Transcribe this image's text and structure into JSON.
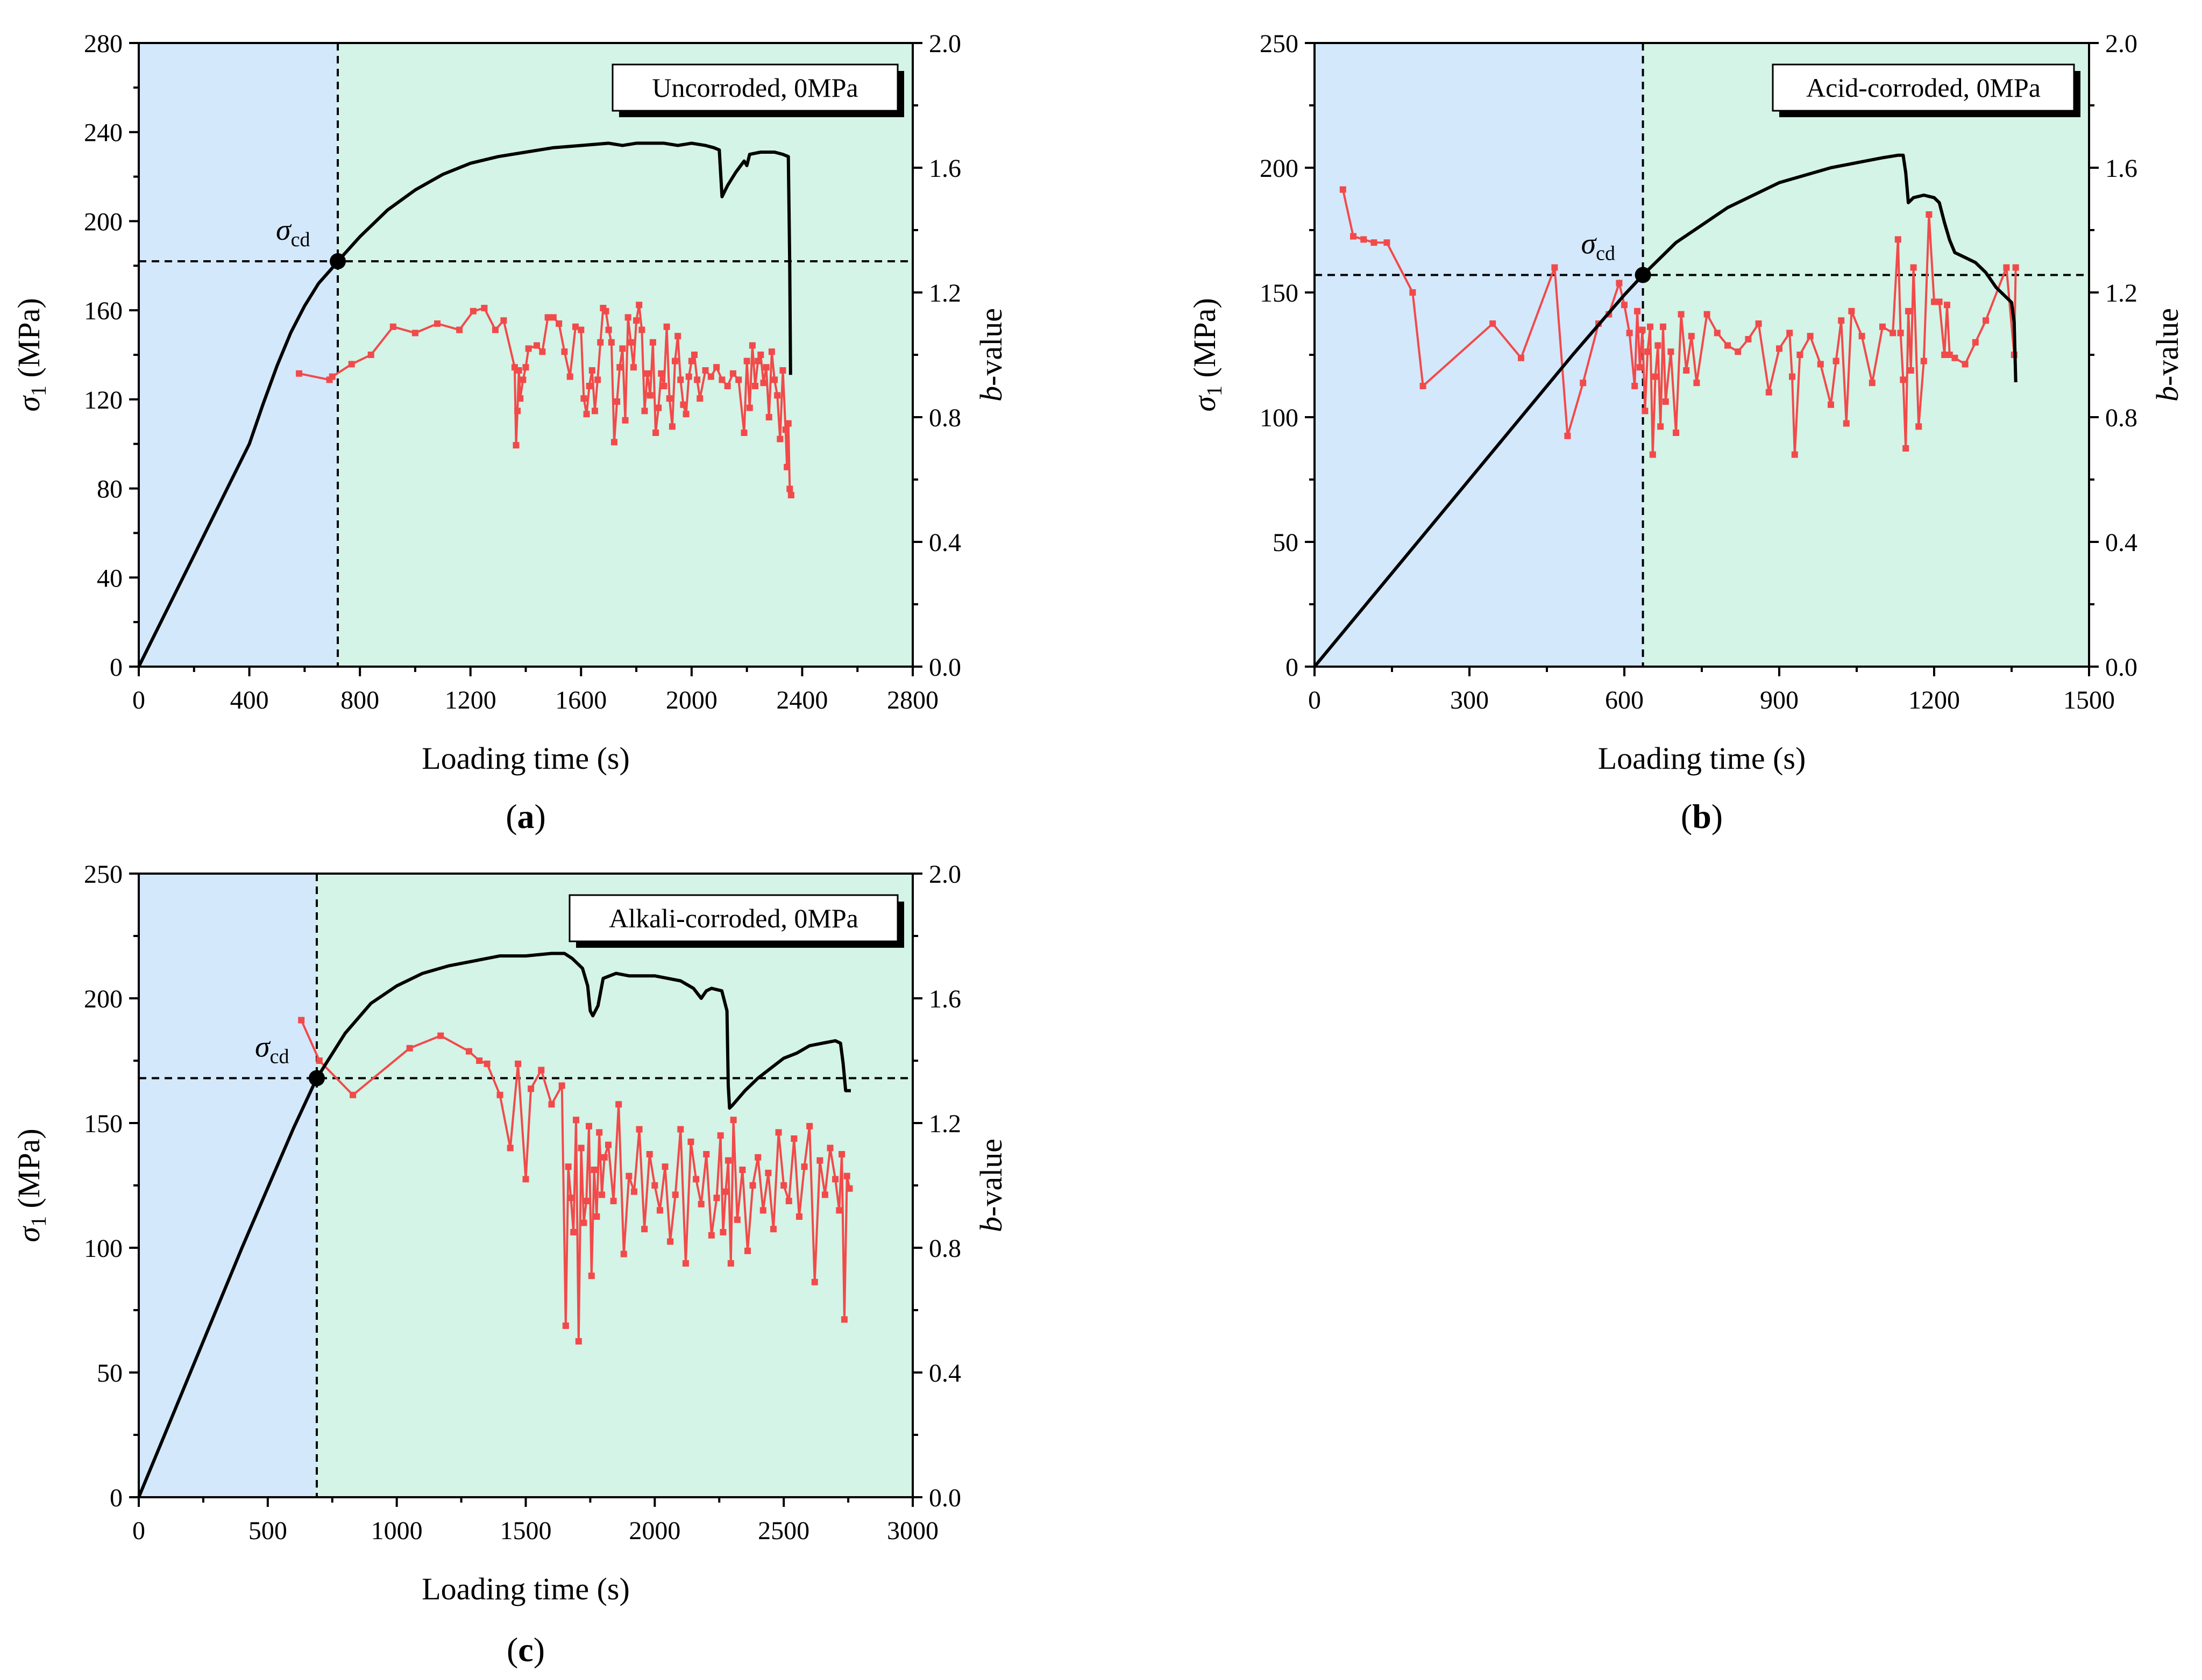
{
  "colors": {
    "pre_region": "#d3e8fb",
    "post_region": "#d3f4e7",
    "stress_line": "#000000",
    "b_value": "#f24a4a",
    "marker": "#000000"
  },
  "chart_data": [
    {
      "id": "a",
      "type": "line",
      "panel_label": "a",
      "legend": "Uncorroded, 0MPa",
      "xlabel": "Loading time (s)",
      "ylabel_main": "σ",
      "ylabel_sub": "1",
      "ylabel_unit": " (MPa)",
      "y2label_italic": "b",
      "y2label_rest": "-value",
      "xlim": [
        0,
        2800
      ],
      "ylim": [
        0,
        280
      ],
      "y2lim": [
        0,
        2.0
      ],
      "xticks": [
        "0",
        "400",
        "800",
        "1200",
        "1600",
        "2000",
        "2400",
        "2800"
      ],
      "yticks": [
        "0",
        "40",
        "80",
        "120",
        "160",
        "200",
        "240",
        "280"
      ],
      "y2ticks": [
        "0.0",
        "0.4",
        "0.8",
        "1.2",
        "1.6",
        "2.0"
      ],
      "cd_point": {
        "x": 720,
        "y": 182,
        "label": "σ",
        "sub": "cd"
      },
      "stress": {
        "x": [
          0,
          100,
          200,
          300,
          400,
          450,
          500,
          550,
          600,
          650,
          700,
          720,
          800,
          900,
          1000,
          1100,
          1200,
          1300,
          1400,
          1500,
          1600,
          1700,
          1750,
          1800,
          1850,
          1900,
          1950,
          2000,
          2050,
          2080,
          2100,
          2110,
          2130,
          2160,
          2190,
          2200,
          2210,
          2250,
          2300,
          2330,
          2350,
          2355,
          2358
        ],
        "y": [
          0,
          25,
          50,
          75,
          100,
          118,
          135,
          150,
          162,
          172,
          179,
          182,
          193,
          205,
          214,
          221,
          226,
          229,
          231,
          233,
          234,
          235,
          234,
          235,
          235,
          235,
          234,
          235,
          234,
          233,
          232,
          211,
          216,
          222,
          227,
          225,
          230,
          231,
          231,
          230,
          229,
          180,
          131
        ]
      },
      "b_values": {
        "x": [
          580,
          690,
          700,
          770,
          840,
          920,
          1000,
          1080,
          1160,
          1210,
          1250,
          1290,
          1320,
          1360,
          1365,
          1370,
          1375,
          1380,
          1390,
          1400,
          1410,
          1440,
          1460,
          1480,
          1500,
          1520,
          1540,
          1560,
          1580,
          1600,
          1610,
          1620,
          1630,
          1640,
          1650,
          1660,
          1670,
          1680,
          1690,
          1700,
          1710,
          1720,
          1730,
          1740,
          1750,
          1760,
          1770,
          1780,
          1790,
          1800,
          1810,
          1820,
          1830,
          1840,
          1850,
          1860,
          1870,
          1880,
          1890,
          1900,
          1910,
          1920,
          1930,
          1940,
          1950,
          1960,
          1970,
          1980,
          1990,
          2000,
          2010,
          2020,
          2030,
          2050,
          2070,
          2090,
          2110,
          2130,
          2150,
          2170,
          2190,
          2200,
          2210,
          2220,
          2230,
          2240,
          2250,
          2260,
          2270,
          2280,
          2290,
          2300,
          2310,
          2320,
          2330,
          2340,
          2345,
          2350,
          2355,
          2360
        ],
        "y": [
          0.94,
          0.92,
          0.93,
          0.97,
          1.0,
          1.09,
          1.07,
          1.1,
          1.08,
          1.14,
          1.15,
          1.08,
          1.11,
          0.96,
          0.71,
          0.82,
          0.95,
          0.86,
          0.92,
          0.96,
          1.02,
          1.03,
          1.01,
          1.12,
          1.12,
          1.1,
          1.01,
          0.93,
          1.09,
          1.08,
          0.86,
          0.81,
          0.9,
          0.95,
          0.82,
          0.92,
          1.04,
          1.15,
          1.14,
          1.08,
          1.04,
          0.72,
          0.85,
          0.96,
          1.02,
          0.79,
          1.12,
          1.04,
          0.96,
          1.11,
          1.16,
          1.08,
          0.82,
          0.94,
          0.87,
          1.04,
          0.75,
          0.83,
          0.94,
          0.9,
          1.09,
          0.86,
          0.77,
          0.98,
          1.06,
          0.92,
          0.84,
          0.81,
          0.93,
          0.98,
          1.0,
          0.92,
          0.86,
          0.95,
          0.93,
          0.96,
          0.92,
          0.9,
          0.94,
          0.92,
          0.75,
          0.98,
          0.83,
          1.03,
          0.9,
          0.98,
          1.0,
          0.91,
          0.96,
          0.8,
          1.01,
          0.92,
          0.87,
          0.73,
          0.95,
          0.76,
          0.64,
          0.78,
          0.57,
          0.55
        ]
      }
    },
    {
      "id": "b",
      "type": "line",
      "panel_label": "b",
      "legend": "Acid-corroded, 0MPa",
      "xlabel": "Loading time (s)",
      "ylabel_main": "σ",
      "ylabel_sub": "1",
      "ylabel_unit": " (MPa)",
      "y2label_italic": "b",
      "y2label_rest": "-value",
      "xlim": [
        0,
        1500
      ],
      "ylim": [
        0,
        250
      ],
      "y2lim": [
        0,
        2.0
      ],
      "xticks": [
        "0",
        "300",
        "600",
        "900",
        "1200",
        "1500"
      ],
      "yticks": [
        "0",
        "50",
        "100",
        "150",
        "200",
        "250"
      ],
      "y2ticks": [
        "0.0",
        "0.4",
        "0.8",
        "1.2",
        "1.6",
        "2.0"
      ],
      "cd_point": {
        "x": 636,
        "y": 157,
        "label": "σ",
        "sub": "cd"
      },
      "stress": {
        "x": [
          0,
          100,
          200,
          300,
          400,
          500,
          600,
          636,
          700,
          800,
          900,
          1000,
          1050,
          1100,
          1130,
          1140,
          1145,
          1150,
          1160,
          1180,
          1200,
          1210,
          1220,
          1230,
          1240,
          1260,
          1280,
          1300,
          1320,
          1340,
          1350,
          1355,
          1358
        ],
        "y": [
          0,
          25,
          50,
          75,
          100,
          125,
          149,
          157,
          170,
          184,
          194,
          200,
          202,
          204,
          205,
          205,
          198,
          186,
          188,
          189,
          188,
          186,
          178,
          171,
          166,
          164,
          162,
          158,
          152,
          148,
          146,
          138,
          114
        ]
      },
      "b_values": {
        "x": [
          55,
          75,
          95,
          115,
          140,
          190,
          210,
          345,
          400,
          465,
          490,
          520,
          550,
          570,
          590,
          600,
          610,
          620,
          625,
          630,
          635,
          640,
          645,
          650,
          655,
          660,
          665,
          670,
          675,
          680,
          690,
          700,
          710,
          720,
          730,
          740,
          760,
          780,
          800,
          820,
          840,
          860,
          880,
          900,
          920,
          925,
          930,
          940,
          960,
          980,
          1000,
          1010,
          1020,
          1030,
          1040,
          1060,
          1080,
          1100,
          1120,
          1130,
          1135,
          1140,
          1145,
          1150,
          1155,
          1160,
          1170,
          1180,
          1190,
          1200,
          1210,
          1220,
          1225,
          1230,
          1240,
          1260,
          1280,
          1300,
          1340,
          1355,
          1358
        ],
        "y": [
          1.53,
          1.38,
          1.37,
          1.36,
          1.36,
          1.2,
          0.9,
          1.1,
          0.99,
          1.28,
          0.74,
          0.91,
          1.1,
          1.13,
          1.23,
          1.16,
          1.07,
          0.9,
          1.14,
          0.96,
          1.08,
          0.82,
          1.01,
          1.09,
          0.68,
          0.93,
          1.03,
          0.77,
          1.09,
          0.85,
          1.01,
          0.75,
          1.13,
          0.95,
          1.06,
          0.91,
          1.13,
          1.07,
          1.03,
          1.01,
          1.05,
          1.1,
          0.88,
          1.02,
          1.07,
          0.93,
          0.68,
          1.0,
          1.06,
          0.97,
          0.84,
          0.98,
          1.11,
          0.78,
          1.14,
          1.06,
          0.91,
          1.09,
          1.07,
          1.37,
          1.07,
          0.92,
          0.7,
          1.14,
          0.95,
          1.28,
          0.77,
          0.98,
          1.45,
          1.17,
          1.17,
          1.0,
          1.16,
          1.0,
          0.99,
          0.97,
          1.04,
          1.11,
          1.28,
          1.0,
          1.28
        ]
      }
    },
    {
      "id": "c",
      "type": "line",
      "panel_label": "c",
      "legend": "Alkali-corroded, 0MPa",
      "xlabel": "Loading time (s)",
      "ylabel_main": "σ",
      "ylabel_sub": "1",
      "ylabel_unit": " (MPa)",
      "y2label_italic": "b",
      "y2label_rest": "-value",
      "xlim": [
        0,
        3000
      ],
      "ylim": [
        0,
        250
      ],
      "y2lim": [
        0,
        2.0
      ],
      "xticks": [
        "0",
        "500",
        "1000",
        "1500",
        "2000",
        "2500",
        "3000"
      ],
      "yticks": [
        "0",
        "50",
        "100",
        "150",
        "200",
        "250"
      ],
      "y2ticks": [
        "0.0",
        "0.4",
        "0.8",
        "1.2",
        "1.6",
        "2.0"
      ],
      "cd_point": {
        "x": 690,
        "y": 168,
        "label": "σ",
        "sub": "cd"
      },
      "stress": {
        "x": [
          0,
          100,
          200,
          300,
          400,
          500,
          600,
          690,
          800,
          900,
          1000,
          1100,
          1200,
          1300,
          1400,
          1500,
          1600,
          1650,
          1680,
          1700,
          1720,
          1740,
          1750,
          1760,
          1780,
          1800,
          1850,
          1900,
          2000,
          2100,
          2150,
          2180,
          2200,
          2220,
          2260,
          2280,
          2285,
          2290,
          2300,
          2350,
          2400,
          2450,
          2500,
          2550,
          2600,
          2650,
          2700,
          2720,
          2730,
          2740,
          2760
        ],
        "y": [
          0,
          25,
          50,
          75,
          100,
          124,
          148,
          168,
          186,
          198,
          205,
          210,
          213,
          215,
          217,
          217,
          218,
          218,
          216,
          214,
          212,
          205,
          195,
          193,
          197,
          208,
          210,
          209,
          209,
          207,
          204,
          200,
          203,
          204,
          203,
          195,
          165,
          156,
          157,
          163,
          168,
          172,
          176,
          178,
          181,
          182,
          183,
          182,
          174,
          163,
          163
        ]
      },
      "b_values": {
        "x": [
          630,
          700,
          830,
          1050,
          1170,
          1280,
          1320,
          1350,
          1400,
          1440,
          1470,
          1500,
          1520,
          1560,
          1600,
          1640,
          1655,
          1665,
          1675,
          1685,
          1695,
          1705,
          1715,
          1725,
          1735,
          1745,
          1755,
          1765,
          1775,
          1785,
          1795,
          1805,
          1820,
          1840,
          1860,
          1880,
          1900,
          1920,
          1940,
          1960,
          1980,
          2000,
          2020,
          2040,
          2060,
          2080,
          2100,
          2120,
          2140,
          2160,
          2180,
          2200,
          2220,
          2240,
          2255,
          2265,
          2275,
          2285,
          2295,
          2305,
          2320,
          2340,
          2360,
          2380,
          2400,
          2420,
          2440,
          2460,
          2480,
          2500,
          2520,
          2540,
          2560,
          2580,
          2600,
          2620,
          2640,
          2660,
          2680,
          2700,
          2715,
          2725,
          2735,
          2745,
          2755
        ],
        "y": [
          1.53,
          1.4,
          1.29,
          1.44,
          1.48,
          1.43,
          1.4,
          1.39,
          1.29,
          1.12,
          1.39,
          1.02,
          1.31,
          1.37,
          1.26,
          1.32,
          0.55,
          1.06,
          0.96,
          0.85,
          1.21,
          0.5,
          1.12,
          0.88,
          0.95,
          1.19,
          0.71,
          1.05,
          0.9,
          1.17,
          0.97,
          1.09,
          1.13,
          0.95,
          1.26,
          0.78,
          1.03,
          0.98,
          1.18,
          0.86,
          1.1,
          1.0,
          0.92,
          1.06,
          0.82,
          0.97,
          1.18,
          0.75,
          1.14,
          1.02,
          0.94,
          1.1,
          0.84,
          0.96,
          1.16,
          0.85,
          0.98,
          1.08,
          0.75,
          1.21,
          0.89,
          1.05,
          0.79,
          1.0,
          1.09,
          0.92,
          1.04,
          0.86,
          1.17,
          1.0,
          0.95,
          1.15,
          0.9,
          1.06,
          1.19,
          0.69,
          1.08,
          0.97,
          1.12,
          1.02,
          0.92,
          1.1,
          0.57,
          1.03,
          0.99
        ]
      }
    }
  ]
}
